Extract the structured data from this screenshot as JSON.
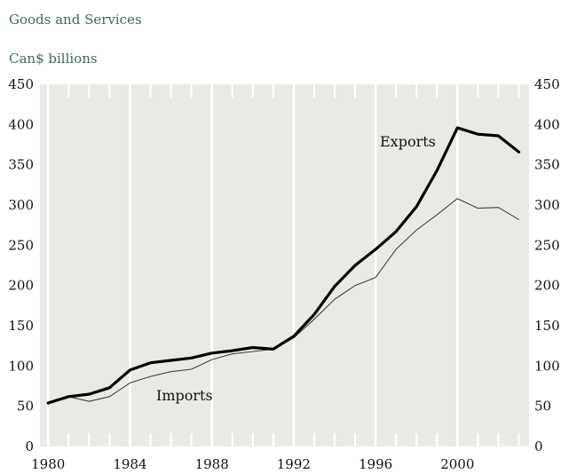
{
  "chart_data": {
    "type": "line",
    "title": "",
    "subtitle": "Goods and Services",
    "unit_label": "Can$ billions",
    "xlabel": "",
    "ylabel": "",
    "x": [
      1980,
      1981,
      1982,
      1983,
      1984,
      1985,
      1986,
      1987,
      1988,
      1989,
      1990,
      1991,
      1992,
      1993,
      1994,
      1995,
      1996,
      1997,
      1998,
      1999,
      2000,
      2001,
      2002,
      2003
    ],
    "x_ticks": [
      1980,
      1984,
      1988,
      1992,
      1996,
      2000
    ],
    "xlim": [
      1979.6,
      2003.5
    ],
    "y_ticks": [
      0,
      50,
      100,
      150,
      200,
      250,
      300,
      350,
      400,
      450
    ],
    "ylim": [
      0,
      450
    ],
    "y_axis_both_sides": true,
    "grid": "vertical",
    "background_color": "#e9e9e6",
    "series": [
      {
        "name": "Exports",
        "color": "#000000",
        "weight": "heavy",
        "values": [
          54,
          62,
          65,
          73,
          95,
          104,
          107,
          110,
          116,
          119,
          123,
          121,
          137,
          164,
          199,
          225,
          245,
          267,
          298,
          343,
          396,
          388,
          386,
          366
        ]
      },
      {
        "name": "Imports",
        "color": "#2f4a3e",
        "weight": "thin",
        "values": [
          53,
          62,
          56,
          62,
          79,
          87,
          93,
          96,
          108,
          115,
          118,
          121,
          135,
          158,
          183,
          200,
          210,
          245,
          269,
          288,
          308,
          296,
          297,
          282
        ]
      }
    ]
  }
}
